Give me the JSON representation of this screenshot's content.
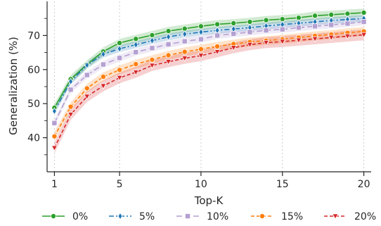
{
  "chart_data": {
    "type": "line",
    "title": "",
    "xlabel": "Top-K",
    "ylabel": "Generalization (%)",
    "x": [
      1,
      2,
      3,
      4,
      5,
      6,
      7,
      8,
      9,
      10,
      11,
      12,
      13,
      14,
      15,
      16,
      17,
      18,
      19,
      20
    ],
    "xticks": [
      1,
      5,
      10,
      15,
      20
    ],
    "yticks": [
      40,
      50,
      60,
      70
    ],
    "xlim": [
      0.55,
      20.45
    ],
    "ylim": [
      30,
      80
    ],
    "grid": "vertical dotted",
    "legend_position": "bottom",
    "series": [
      {
        "name": "0%",
        "color": "#2ca02c",
        "marker": "circle",
        "dash": "solid",
        "band": 1.2,
        "values": [
          48.8,
          57.2,
          61.5,
          65.3,
          67.8,
          69.0,
          70.1,
          71.3,
          72.0,
          72.7,
          73.3,
          73.6,
          74.0,
          74.5,
          74.8,
          75.2,
          75.8,
          76.1,
          76.4,
          76.7
        ]
      },
      {
        "name": "5%",
        "color": "#1f77b4",
        "marker": "diamond",
        "dash": "dashdot",
        "band": 1.0,
        "values": [
          47.8,
          56.5,
          61.3,
          64.5,
          66.1,
          67.3,
          68.5,
          69.6,
          70.4,
          71.0,
          71.5,
          71.9,
          72.3,
          72.8,
          73.2,
          73.6,
          74.0,
          74.4,
          74.7,
          75.0
        ]
      },
      {
        "name": "10%",
        "color": "#b4a0d2",
        "marker": "square",
        "dash": "longdash",
        "band": 1.0,
        "values": [
          44.3,
          54.1,
          58.4,
          61.5,
          63.4,
          65.1,
          66.3,
          67.4,
          68.3,
          68.9,
          70.0,
          70.5,
          71.0,
          71.5,
          71.8,
          72.3,
          72.7,
          73.1,
          73.5,
          74.0
        ]
      },
      {
        "name": "15%",
        "color": "#ff7f0e",
        "marker": "circle",
        "dash": "dashed",
        "band": 1.3,
        "values": [
          40.4,
          49.1,
          54.5,
          57.9,
          59.9,
          61.6,
          62.9,
          64.2,
          65.2,
          66.0,
          66.8,
          67.5,
          68.1,
          68.5,
          68.9,
          69.4,
          69.9,
          70.3,
          70.8,
          71.2
        ]
      },
      {
        "name": "20%",
        "color": "#d62728",
        "marker": "triangle-down",
        "dash": "dashed",
        "band": 1.6,
        "values": [
          37.0,
          46.8,
          52.1,
          55.2,
          57.6,
          59.2,
          61.2,
          62.3,
          63.3,
          64.1,
          65.2,
          66.4,
          67.3,
          67.9,
          68.2,
          68.6,
          69.0,
          69.4,
          69.8,
          70.2
        ]
      }
    ]
  }
}
